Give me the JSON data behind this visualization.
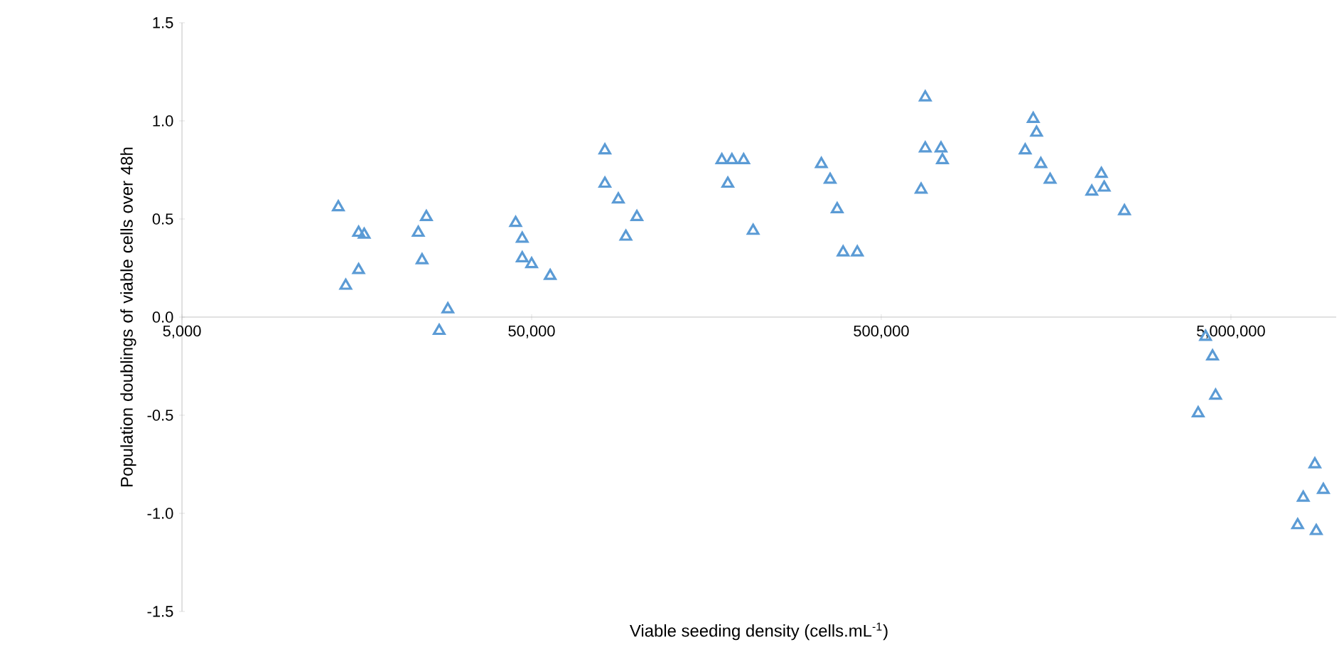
{
  "chart_data": {
    "type": "scatter",
    "xlabel": "Viable seeding density (cells.mL$^{-1}$)",
    "ylabel": "Population doublings of viable cells over 48h",
    "log": "x",
    "marker": "triangle",
    "xlim": [
      5000,
      10000000
    ],
    "xticks": [
      {
        "value": 5000,
        "label": "5,000"
      },
      {
        "value": 50000,
        "label": "50,000"
      },
      {
        "value": 500000,
        "label": "500,000"
      },
      {
        "value": 5000000,
        "label": "5,000,000"
      }
    ],
    "ylim": [
      -1.5,
      1.5
    ],
    "yticks": [
      {
        "value": -1.5,
        "label": "-1.5"
      },
      {
        "value": -1,
        "label": "-1.0"
      },
      {
        "value": -0.5,
        "label": "-0.5"
      },
      {
        "value": 0,
        "label": "0.0"
      },
      {
        "value": 0.5,
        "label": "0.5"
      },
      {
        "value": 1,
        "label": "1.0"
      },
      {
        "value": 1.5,
        "label": "1.5"
      }
    ],
    "series": [
      {
        "color": "#5b9bd5",
        "x": [
          14000,
          14700,
          16000,
          16600,
          16000,
          23700,
          25000,
          24300,
          28800,
          27200,
          45000,
          47000,
          47000,
          50000,
          56500,
          81000,
          81000,
          88500,
          100000,
          93000,
          175000,
          187000,
          202000,
          182000,
          215000,
          337000,
          357000,
          374000,
          389000,
          427000,
          668000,
          741000,
          748000,
          650000,
          668000,
          1360000,
          1390000,
          1290000,
          1430000,
          1520000,
          2130000,
          2170000,
          2000000,
          2480000,
          4230000,
          4430000,
          4520000,
          4030000,
          8690000,
          9190000,
          8050000,
          7760000,
          8770000
        ],
        "values": [
          0.56,
          0.16,
          0.43,
          0.42,
          0.24,
          0.43,
          0.51,
          0.29,
          0.04,
          -0.07,
          0.48,
          0.4,
          0.3,
          0.27,
          0.21,
          0.85,
          0.68,
          0.6,
          0.51,
          0.41,
          0.8,
          0.8,
          0.8,
          0.68,
          0.44,
          0.78,
          0.7,
          0.55,
          0.33,
          0.33,
          1.12,
          0.86,
          0.8,
          0.65,
          0.86,
          1.01,
          0.94,
          0.85,
          0.78,
          0.7,
          0.73,
          0.66,
          0.64,
          0.54,
          -0.1,
          -0.2,
          -0.4,
          -0.49,
          -0.75,
          -0.88,
          -0.92,
          -1.06,
          -1.09
        ]
      }
    ]
  }
}
